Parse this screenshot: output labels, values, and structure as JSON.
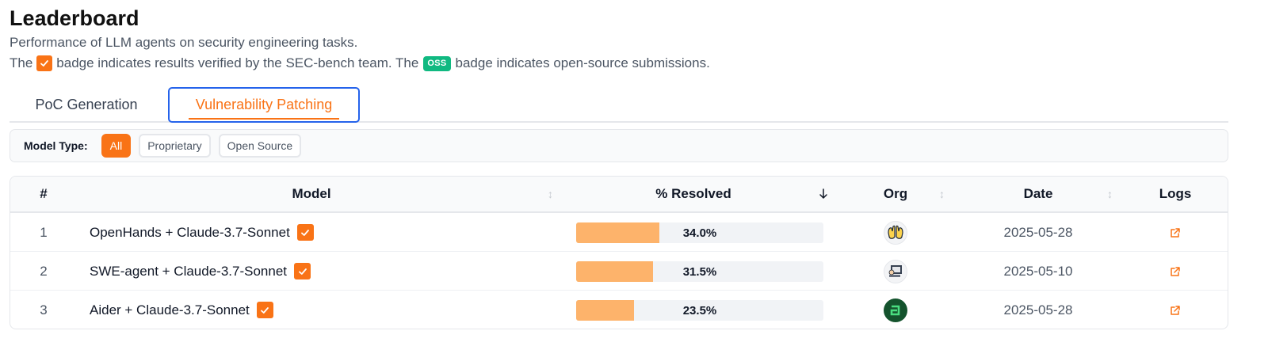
{
  "header": {
    "title": "Leaderboard",
    "subtitle": "Performance of LLM agents on security engineering tasks.",
    "note_part1": "The",
    "note_part2": "badge indicates results verified by the SEC-bench team. The",
    "note_oss": "OSS",
    "note_part3": "badge indicates open-source submissions."
  },
  "tabs": [
    {
      "label": "PoC Generation",
      "active": false
    },
    {
      "label": "Vulnerability Patching",
      "active": true
    }
  ],
  "filter": {
    "label": "Model Type:",
    "options": [
      {
        "label": "All",
        "active": true
      },
      {
        "label": "Proprietary",
        "active": false
      },
      {
        "label": "Open Source",
        "active": false
      }
    ]
  },
  "table": {
    "columns": {
      "rank": "#",
      "model": "Model",
      "resolved": "% Resolved",
      "org": "Org",
      "date": "Date",
      "logs": "Logs"
    },
    "sort_column": "resolved",
    "sort_direction": "desc",
    "rows": [
      {
        "rank": "1",
        "model": "OpenHands + Claude-3.7-Sonnet",
        "verified": true,
        "resolved": 34.0,
        "resolved_label": "34.0%",
        "org_icon": "openhands-hands-icon",
        "date": "2025-05-28"
      },
      {
        "rank": "2",
        "model": "SWE-agent + Claude-3.7-Sonnet",
        "verified": true,
        "resolved": 31.5,
        "resolved_label": "31.5%",
        "org_icon": "swe-agent-computer-icon",
        "date": "2025-05-10"
      },
      {
        "rank": "3",
        "model": "Aider + Claude-3.7-Sonnet",
        "verified": true,
        "resolved": 23.5,
        "resolved_label": "23.5%",
        "org_icon": "aider-terminal-icon",
        "date": "2025-05-28"
      }
    ]
  },
  "colors": {
    "accent": "#f97316",
    "bar_fill": "#fdb36b",
    "bar_track": "#f1f3f6",
    "oss_badge": "#10b981",
    "focus_ring": "#2563eb"
  }
}
